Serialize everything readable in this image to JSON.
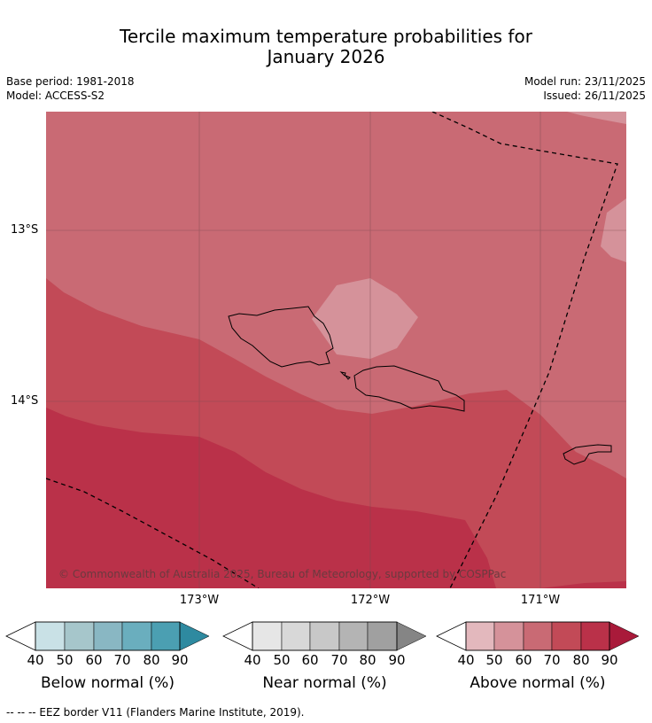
{
  "title_line1": "Tercile maximum temperature probabilities for",
  "title_line2": "January 2026",
  "base_period": "Base period: 1981-2018",
  "model": "Model: ACCESS-S2",
  "model_run": "Model run: 23/11/2025",
  "issued": "Issued: 26/11/2025",
  "map": {
    "lat_labels": [
      "13°S",
      "14°S"
    ],
    "lon_labels": [
      "173°W",
      "172°W",
      "171°W"
    ],
    "copyright": "© Commonwealth of Australia 2025, Bureau of Meteorology, supported by COSPPac",
    "colors": {
      "above_60": "#c96a74",
      "above_70": "#c24a57",
      "above_80": "#ba3149",
      "above_50": "#d5929a"
    }
  },
  "legends": [
    {
      "title": "Below normal (%)",
      "ticks": [
        "40",
        "50",
        "60",
        "70",
        "80",
        "90"
      ],
      "colors": [
        "#c9e1e6",
        "#a6c6cb",
        "#89b7c3",
        "#6aaebe",
        "#4b9fb2",
        "#2e8aa0"
      ]
    },
    {
      "title": "Near normal (%)",
      "ticks": [
        "40",
        "50",
        "60",
        "70",
        "80",
        "90"
      ],
      "colors": [
        "#e6e6e6",
        "#d8d8d8",
        "#c8c8c8",
        "#b4b4b4",
        "#a0a0a0",
        "#858585"
      ]
    },
    {
      "title": "Above normal (%)",
      "ticks": [
        "40",
        "50",
        "60",
        "70",
        "80",
        "90"
      ],
      "colors": [
        "#e3b8bd",
        "#d5929a",
        "#c96a74",
        "#c24a57",
        "#ba3149",
        "#a91a3a"
      ]
    }
  ],
  "footnote": "--  --  -- EEZ border V11 (Flanders Marine Institute, 2019)."
}
